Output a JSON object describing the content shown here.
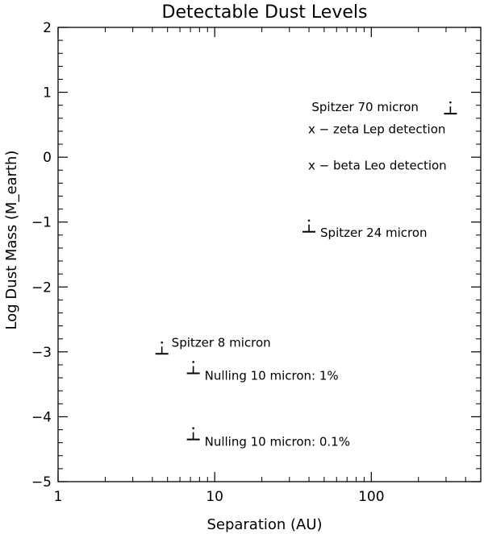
{
  "chart_data": {
    "type": "scatter",
    "title": "Detectable Dust Levels",
    "xlabel": "Separation (AU)",
    "ylabel": "Log Dust Mass (M_earth)",
    "xscale": "log",
    "xlim": [
      1,
      500
    ],
    "ylim": [
      -5,
      2
    ],
    "x_ticks": [
      1,
      10,
      100
    ],
    "x_tick_labels": [
      "1",
      "10",
      "100"
    ],
    "y_ticks": [
      2,
      1,
      0,
      -1,
      -2,
      -3,
      -4,
      -5
    ],
    "y_tick_labels": [
      "2",
      "1",
      "0",
      "−1",
      "−2",
      "−3",
      "−4",
      "−5"
    ],
    "grid": false,
    "marker": "upper-limit",
    "points": [
      {
        "x": 4.6,
        "y": -3.03,
        "label": "Spitzer 8 micron"
      },
      {
        "x": 7.3,
        "y": -3.33,
        "label": "Nulling 10 micron: 1%"
      },
      {
        "x": 7.3,
        "y": -4.35,
        "label": "Nulling 10 micron: 0.1%"
      },
      {
        "x": 40,
        "y": -1.15,
        "label": "Spitzer 24 micron"
      },
      {
        "x": 320,
        "y": 0.67,
        "label": "Spitzer 70 micron"
      }
    ],
    "legend": [
      "x − zeta Lep detection",
      "x − beta Leo detection"
    ]
  }
}
